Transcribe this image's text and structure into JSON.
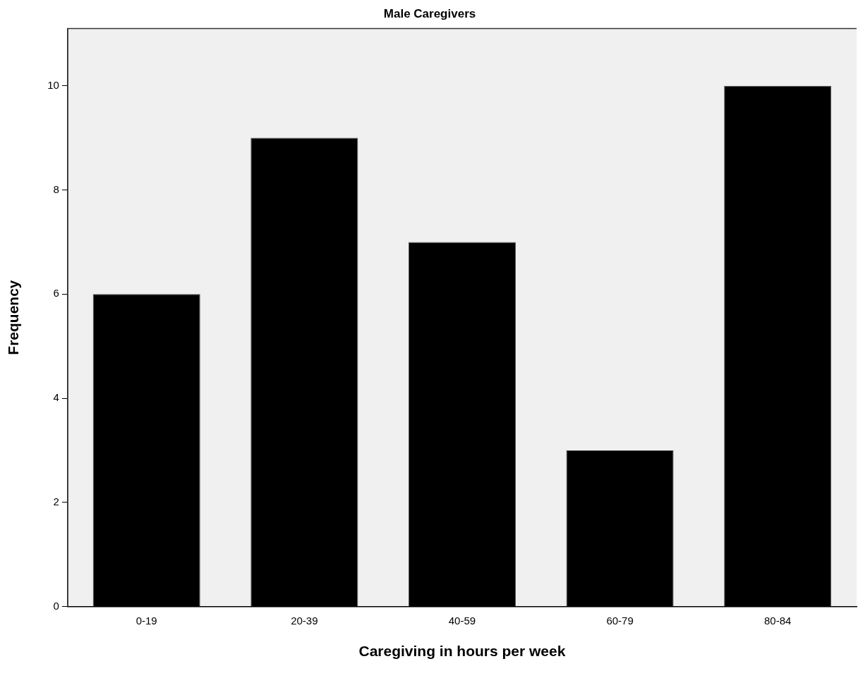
{
  "chart_data": {
    "type": "bar",
    "title": "Male Caregivers",
    "xlabel": "Caregiving in hours per week",
    "ylabel": "Frequency",
    "categories": [
      "0-19",
      "20-39",
      "40-59",
      "60-79",
      "80-84"
    ],
    "values": [
      6,
      9,
      7,
      3,
      10
    ],
    "color": "#000000",
    "ylim": [
      0,
      11.1
    ],
    "yticks": [
      0,
      2,
      4,
      6,
      8,
      10
    ],
    "grid": false,
    "legend": false
  }
}
